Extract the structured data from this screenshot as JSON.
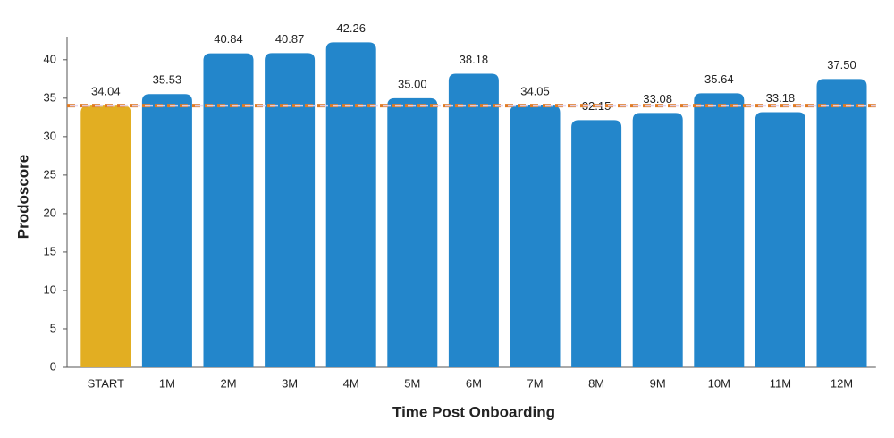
{
  "chart_data": {
    "type": "bar",
    "x_label": "Time Post Onboarding",
    "y_label": "Prodoscore",
    "categories": [
      "START",
      "1M",
      "2M",
      "3M",
      "4M",
      "5M",
      "6M",
      "7M",
      "8M",
      "9M",
      "10M",
      "11M",
      "12M"
    ],
    "values": [
      34.04,
      35.53,
      40.84,
      40.87,
      42.26,
      35.0,
      38.18,
      34.05,
      32.15,
      33.08,
      35.64,
      33.18,
      37.5
    ],
    "value_labels": [
      "34.04",
      "35.53",
      "40.84",
      "40.87",
      "42.26",
      "35.00",
      "38.18",
      "34.05",
      "32.15",
      "33.08",
      "35.64",
      "33.18",
      "37.50"
    ],
    "colors": [
      "#e2ae22",
      "#2386cb",
      "#2386cb",
      "#2386cb",
      "#2386cb",
      "#2386cb",
      "#2386cb",
      "#2386cb",
      "#2386cb",
      "#2386cb",
      "#2386cb",
      "#2386cb",
      "#2386cb"
    ],
    "reference_line": 34.04,
    "reference_color": "#e07b24",
    "ylim": [
      0,
      43
    ],
    "yticks": [
      0,
      5,
      10,
      15,
      20,
      25,
      30,
      35,
      40
    ],
    "grid": false
  }
}
